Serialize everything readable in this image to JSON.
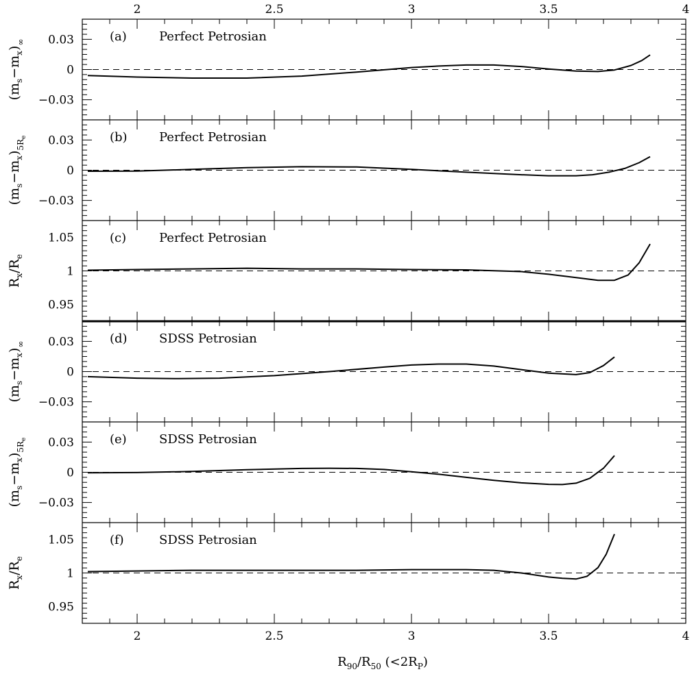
{
  "chart_data": {
    "type": "line",
    "xlabel": {
      "main": "R",
      "sub1": "90",
      "mid": "/R",
      "sub2": "50",
      "tail": " (<2R",
      "sub3": "P",
      "end": ")"
    },
    "xlim": [
      1.8,
      4.0
    ],
    "x_ticks": [
      2,
      2.5,
      3,
      3.5,
      4
    ],
    "x_tick_labels": [
      "2",
      "2.5",
      "3",
      "3.5",
      "4"
    ],
    "top_axis_labels": true,
    "grid": false,
    "panels": [
      {
        "label": "(a)",
        "name": "Perfect Petrosian",
        "ylabel": {
          "main": "(m",
          "s1": "s",
          "mid": "−m",
          "s2": "x",
          "tail": ")",
          "s3": "∞"
        },
        "ylim": [
          -0.05,
          0.05
        ],
        "y_ticks": [
          -0.03,
          0,
          0.03
        ],
        "y_tick_labels": [
          "−0.03",
          "0",
          "0.03"
        ],
        "reference": 0,
        "x": [
          1.82,
          2.0,
          2.2,
          2.4,
          2.6,
          2.8,
          3.0,
          3.1,
          3.2,
          3.3,
          3.4,
          3.5,
          3.6,
          3.68,
          3.74,
          3.8,
          3.84,
          3.87
        ],
        "y": [
          -0.006,
          -0.0075,
          -0.0085,
          -0.0085,
          -0.0065,
          -0.0025,
          0.002,
          0.0035,
          0.0045,
          0.0045,
          0.003,
          0.0005,
          -0.0015,
          -0.002,
          -0.0005,
          0.004,
          0.009,
          0.0145
        ]
      },
      {
        "label": "(b)",
        "name": "Perfect Petrosian",
        "ylabel": {
          "main": "(m",
          "s1": "s",
          "mid": "−m",
          "s2": "x",
          "tail": ")",
          "s3": "5R",
          "s4": "e"
        },
        "ylim": [
          -0.05,
          0.05
        ],
        "y_ticks": [
          -0.03,
          0,
          0.03
        ],
        "y_tick_labels": [
          "−0.03",
          "0",
          "0.03"
        ],
        "reference": 0,
        "x": [
          1.82,
          2.0,
          2.2,
          2.4,
          2.6,
          2.8,
          3.0,
          3.2,
          3.4,
          3.5,
          3.6,
          3.66,
          3.72,
          3.78,
          3.83,
          3.87
        ],
        "y": [
          -0.001,
          -0.0008,
          0.0008,
          0.0025,
          0.0035,
          0.0032,
          0.0008,
          -0.002,
          -0.0045,
          -0.0055,
          -0.0055,
          -0.0045,
          -0.002,
          0.002,
          0.0075,
          0.0135
        ]
      },
      {
        "label": "(c)",
        "name": "Perfect Petrosian",
        "ylabel": {
          "main": "R",
          "s1": "x",
          "mid": "/R",
          "s2": "e"
        },
        "ylim": [
          0.925,
          1.075
        ],
        "y_ticks": [
          0.95,
          1.0,
          1.05
        ],
        "y_tick_labels": [
          "0.95",
          "1",
          "1.05"
        ],
        "reference": 1.0,
        "x": [
          1.82,
          2.0,
          2.2,
          2.4,
          2.6,
          2.8,
          3.0,
          3.2,
          3.4,
          3.5,
          3.6,
          3.68,
          3.74,
          3.79,
          3.83,
          3.87
        ],
        "y": [
          1.001,
          1.002,
          1.003,
          1.004,
          1.003,
          1.003,
          1.002,
          1.0015,
          0.999,
          0.995,
          0.99,
          0.986,
          0.986,
          0.994,
          1.012,
          1.04
        ]
      },
      {
        "label": "(d)",
        "name": "SDSS Petrosian",
        "ylabel": {
          "main": "(m",
          "s1": "s",
          "mid": "−m",
          "s2": "x",
          "tail": ")",
          "s3": "∞"
        },
        "ylim": [
          -0.05,
          0.05
        ],
        "y_ticks": [
          -0.03,
          0,
          0.03
        ],
        "y_tick_labels": [
          "−0.03",
          "0",
          "0.03"
        ],
        "reference": 0,
        "x": [
          1.82,
          2.0,
          2.15,
          2.3,
          2.5,
          2.7,
          2.9,
          3.0,
          3.1,
          3.2,
          3.3,
          3.4,
          3.5,
          3.6,
          3.65,
          3.7,
          3.74
        ],
        "y": [
          -0.005,
          -0.0065,
          -0.007,
          -0.0065,
          -0.004,
          0.0,
          0.0045,
          0.0065,
          0.0075,
          0.0075,
          0.0055,
          0.002,
          -0.0015,
          -0.003,
          -0.001,
          0.006,
          0.0145
        ]
      },
      {
        "label": "(e)",
        "name": "SDSS Petrosian",
        "ylabel": {
          "main": "(m",
          "s1": "s",
          "mid": "−m",
          "s2": "x",
          "tail": ")",
          "s3": "5R",
          "s4": "e"
        },
        "ylim": [
          -0.05,
          0.05
        ],
        "y_ticks": [
          -0.03,
          0,
          0.03
        ],
        "y_tick_labels": [
          "−0.03",
          "0",
          "0.03"
        ],
        "reference": 0,
        "x": [
          1.82,
          2.0,
          2.2,
          2.4,
          2.6,
          2.7,
          2.8,
          2.9,
          3.0,
          3.1,
          3.2,
          3.3,
          3.4,
          3.5,
          3.55,
          3.6,
          3.65,
          3.7,
          3.74
        ],
        "y": [
          -0.0005,
          -0.0003,
          0.0008,
          0.0025,
          0.0038,
          0.004,
          0.0038,
          0.0028,
          0.0005,
          -0.002,
          -0.005,
          -0.008,
          -0.0105,
          -0.012,
          -0.0122,
          -0.0108,
          -0.006,
          0.004,
          0.0165
        ]
      },
      {
        "label": "(f)",
        "name": "SDSS Petrosian",
        "ylabel": {
          "main": "R",
          "s1": "x",
          "mid": "/R",
          "s2": "e"
        },
        "ylim": [
          0.925,
          1.075
        ],
        "y_ticks": [
          0.95,
          1.0,
          1.05
        ],
        "y_tick_labels": [
          "0.95",
          "1",
          "1.05"
        ],
        "reference": 1.0,
        "x": [
          1.82,
          2.0,
          2.2,
          2.4,
          2.6,
          2.8,
          3.0,
          3.2,
          3.3,
          3.4,
          3.5,
          3.55,
          3.6,
          3.64,
          3.68,
          3.71,
          3.74
        ],
        "y": [
          1.002,
          1.003,
          1.004,
          1.004,
          1.004,
          1.004,
          1.005,
          1.005,
          1.004,
          1.0,
          0.994,
          0.992,
          0.991,
          0.995,
          1.008,
          1.028,
          1.058
        ]
      }
    ]
  }
}
